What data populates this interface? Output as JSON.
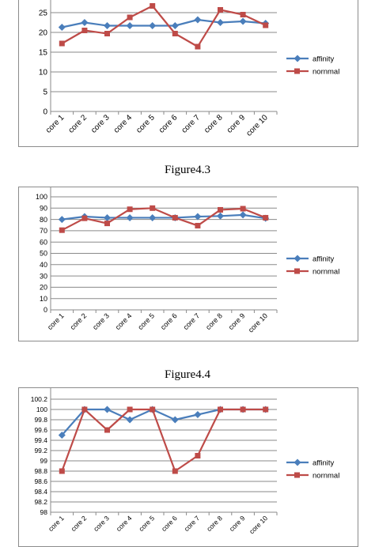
{
  "captions": [
    "Figure4.3",
    "Figure4.4"
  ],
  "chart_data": [
    {
      "type": "line",
      "categories": [
        "core 1",
        "core 2",
        "core 3",
        "core 4",
        "core 5",
        "core 6",
        "core 7",
        "core 8",
        "core 9",
        "core 10"
      ],
      "ylim": [
        0,
        25
      ],
      "yticks": [
        0,
        5,
        10,
        15,
        20,
        25
      ],
      "grid": true,
      "legend_position": "right",
      "series": [
        {
          "name": "affinity",
          "color": "#4a7ebb",
          "marker": "diamond",
          "values": [
            21.3,
            22.5,
            21.7,
            21.7,
            21.7,
            21.7,
            23.2,
            22.5,
            22.8,
            22.3
          ]
        },
        {
          "name": "nornmal",
          "color": "#be4b48",
          "marker": "square",
          "values": [
            17.2,
            20.5,
            19.7,
            23.8,
            26.7,
            19.7,
            16.4,
            25.7,
            24.5,
            21.8
          ]
        }
      ]
    },
    {
      "type": "line",
      "categories": [
        "core 1",
        "core 2",
        "core 3",
        "core 4",
        "core 5",
        "core 6",
        "core 7",
        "core 8",
        "core 9",
        "core 10"
      ],
      "ylim": [
        0,
        100
      ],
      "yticks": [
        0,
        10,
        20,
        30,
        40,
        50,
        60,
        70,
        80,
        90,
        100
      ],
      "grid": true,
      "legend_position": "right",
      "series": [
        {
          "name": "affinity",
          "color": "#4a7ebb",
          "marker": "diamond",
          "values": [
            80,
            82.5,
            81.5,
            81.5,
            81.5,
            81.5,
            82.5,
            83,
            84,
            81
          ]
        },
        {
          "name": "nornmal",
          "color": "#be4b48",
          "marker": "square",
          "values": [
            70.5,
            81,
            76.5,
            89,
            90,
            81.5,
            74.5,
            88.5,
            89.5,
            81.5
          ]
        }
      ]
    },
    {
      "type": "line",
      "categories": [
        "core 1",
        "core 2",
        "core 3",
        "core 4",
        "core 5",
        "core 6",
        "core 7",
        "core 8",
        "core 9",
        "core 10"
      ],
      "ylim": [
        98,
        100.2
      ],
      "yticks": [
        "98",
        "98.2",
        "98.4",
        "98.6",
        "98.8",
        "99",
        "99.2",
        "99.4",
        "99.6",
        "99.8",
        "100",
        "100.2"
      ],
      "grid": true,
      "legend_position": "right",
      "series": [
        {
          "name": "affinity",
          "color": "#4a7ebb",
          "marker": "diamond",
          "values": [
            99.5,
            100,
            100,
            99.8,
            100,
            99.8,
            99.9,
            100,
            100,
            100
          ]
        },
        {
          "name": "nornmal",
          "color": "#be4b48",
          "marker": "square",
          "values": [
            98.8,
            100,
            99.6,
            100,
            100,
            98.8,
            99.1,
            100,
            100,
            100
          ]
        }
      ]
    }
  ]
}
